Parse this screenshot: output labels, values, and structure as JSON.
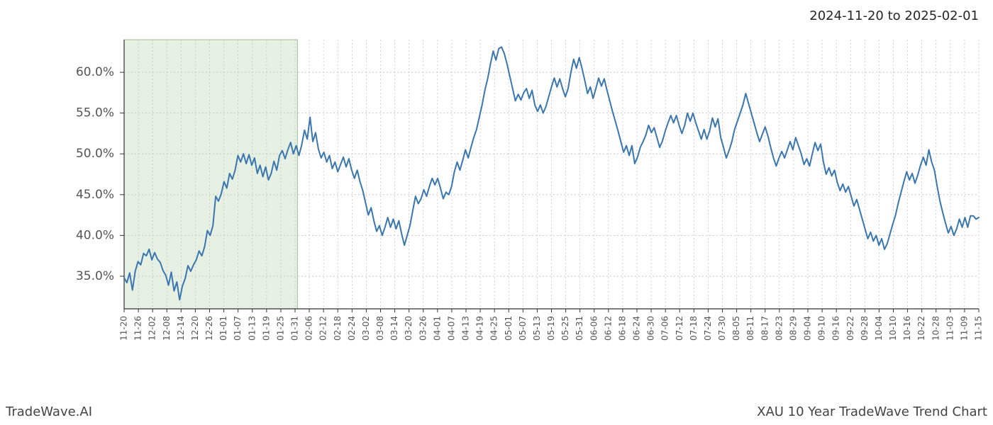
{
  "header": {
    "date_range": "2024-11-20 to 2025-02-01"
  },
  "footer": {
    "left": "TradeWave.AI",
    "right": "XAU 10 Year TradeWave Trend Chart"
  },
  "chart": {
    "type": "line",
    "line_color": "#3a76af",
    "line_width": 2,
    "background_color": "#ffffff",
    "grid_color": "#bfbfbf",
    "grid_dash": "2,3",
    "axis_color": "#333333",
    "highlight": {
      "start_label": "11-20",
      "end_label": "02-01",
      "fill_color": "#d9e8d4",
      "fill_opacity": 0.65,
      "border_color": "#9cbf9a"
    },
    "y_axis": {
      "min": 31,
      "max": 64,
      "ticks": [
        35,
        40,
        45,
        50,
        55,
        60
      ],
      "tick_labels": [
        "35.0%",
        "40.0%",
        "45.0%",
        "50.0%",
        "55.0%",
        "60.0%"
      ],
      "label_fontsize": 17
    },
    "x_axis": {
      "labels": [
        "11-20",
        "11-26",
        "12-02",
        "12-08",
        "12-14",
        "12-20",
        "12-26",
        "01-01",
        "01-07",
        "01-13",
        "01-19",
        "01-25",
        "01-31",
        "02-06",
        "02-12",
        "02-18",
        "02-24",
        "03-02",
        "03-08",
        "03-14",
        "03-20",
        "03-26",
        "04-01",
        "04-07",
        "04-13",
        "04-19",
        "04-25",
        "05-01",
        "05-07",
        "05-13",
        "05-19",
        "05-25",
        "05-31",
        "06-06",
        "06-12",
        "06-18",
        "06-24",
        "06-30",
        "07-06",
        "07-12",
        "07-18",
        "07-24",
        "07-30",
        "08-05",
        "08-11",
        "08-17",
        "08-23",
        "08-29",
        "09-04",
        "09-10",
        "09-16",
        "09-22",
        "09-28",
        "10-04",
        "10-10",
        "10-16",
        "10-22",
        "10-28",
        "11-03",
        "11-09",
        "11-15"
      ],
      "label_fontsize": 12,
      "label_rotation": 90
    },
    "values": [
      34.8,
      34.2,
      35.4,
      33.3,
      35.6,
      36.8,
      36.4,
      37.8,
      37.5,
      38.3,
      37.0,
      37.9,
      37.1,
      36.7,
      35.7,
      35.1,
      33.9,
      35.5,
      33.2,
      34.3,
      32.1,
      33.8,
      34.7,
      36.3,
      35.6,
      36.4,
      37.0,
      38.1,
      37.5,
      38.6,
      40.6,
      40.0,
      41.2,
      44.8,
      44.2,
      45.1,
      46.6,
      45.8,
      47.6,
      46.9,
      48.0,
      49.8,
      49.0,
      50.0,
      48.8,
      49.9,
      48.6,
      49.5,
      47.6,
      48.6,
      47.2,
      48.4,
      46.8,
      47.6,
      49.1,
      48.0,
      49.8,
      50.4,
      49.4,
      50.5,
      51.4,
      50.0,
      51.0,
      49.8,
      51.1,
      52.9,
      51.8,
      54.5,
      51.5,
      52.6,
      50.6,
      49.5,
      50.2,
      49.0,
      49.8,
      48.2,
      49.0,
      47.8,
      48.7,
      49.6,
      48.4,
      49.4,
      48.0,
      47.0,
      48.0,
      46.6,
      45.5,
      44.0,
      42.5,
      43.4,
      41.8,
      40.5,
      41.2,
      40.0,
      41.0,
      42.2,
      41.0,
      42.0,
      40.8,
      41.8,
      40.2,
      38.8,
      40.0,
      41.2,
      43.0,
      44.8,
      43.9,
      44.5,
      45.6,
      44.8,
      46.0,
      47.0,
      46.2,
      47.0,
      45.8,
      44.5,
      45.3,
      45.0,
      46.0,
      47.8,
      49.0,
      48.0,
      49.2,
      50.5,
      49.5,
      50.8,
      52.0,
      53.0,
      54.5,
      56.0,
      57.8,
      59.2,
      61.0,
      62.6,
      61.5,
      62.9,
      63.1,
      62.3,
      61.0,
      59.5,
      58.0,
      56.5,
      57.3,
      56.6,
      57.5,
      58.0,
      56.8,
      57.8,
      56.0,
      55.2,
      56.0,
      55.0,
      55.8,
      57.0,
      58.2,
      59.3,
      58.2,
      59.2,
      58.0,
      57.0,
      58.0,
      60.0,
      61.6,
      60.5,
      61.8,
      60.5,
      59.0,
      57.4,
      58.2,
      56.8,
      58.0,
      59.3,
      58.3,
      59.2,
      57.8,
      56.5,
      55.2,
      54.0,
      52.8,
      51.5,
      50.2,
      51.0,
      49.8,
      51.0,
      48.8,
      49.6,
      50.8,
      51.5,
      52.3,
      53.5,
      52.6,
      53.2,
      52.0,
      50.8,
      51.6,
      52.8,
      53.8,
      54.7,
      53.8,
      54.7,
      53.5,
      52.5,
      53.5,
      55.0,
      54.0,
      55.0,
      53.8,
      52.8,
      51.8,
      53.0,
      51.8,
      52.8,
      54.4,
      53.3,
      54.3,
      52.0,
      50.8,
      49.5,
      50.4,
      51.5,
      53.0,
      54.0,
      55.0,
      56.0,
      57.4,
      56.2,
      55.0,
      53.8,
      52.6,
      51.5,
      52.4,
      53.3,
      52.2,
      50.8,
      49.5,
      48.5,
      49.5,
      50.3,
      49.5,
      50.5,
      51.5,
      50.5,
      52.0,
      51.0,
      50.0,
      48.7,
      49.4,
      48.5,
      50.0,
      51.4,
      50.4,
      51.2,
      49.0,
      47.5,
      48.3,
      47.3,
      48.0,
      46.5,
      45.5,
      46.3,
      45.3,
      46.0,
      44.8,
      43.6,
      44.4,
      43.2,
      42.0,
      40.8,
      39.6,
      40.4,
      39.3,
      40.0,
      38.8,
      39.6,
      38.3,
      39.0,
      40.2,
      41.4,
      42.5,
      44.0,
      45.3,
      46.6,
      47.8,
      46.8,
      47.6,
      46.4,
      47.4,
      48.6,
      49.6,
      48.6,
      50.5,
      49.0,
      48.0,
      46.0,
      44.2,
      42.8,
      41.5,
      40.3,
      41.1,
      40.0,
      40.8,
      42.0,
      41.0,
      42.2,
      41.0,
      42.4,
      42.4,
      42.0,
      42.2
    ]
  }
}
